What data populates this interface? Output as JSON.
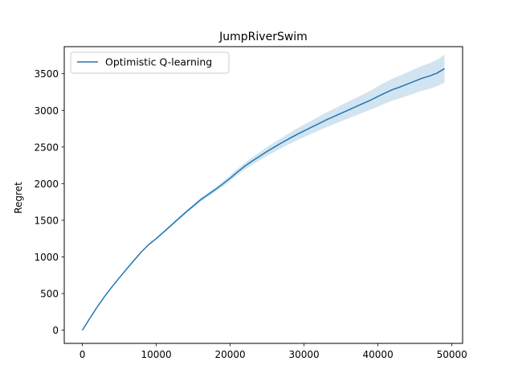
{
  "chart_data": {
    "type": "line",
    "title": "JumpRiverSwim",
    "xlabel": "",
    "ylabel": "Regret",
    "xlim": [
      -2450,
      51450
    ],
    "ylim": [
      -180,
      3870
    ],
    "xticks": [
      0,
      10000,
      20000,
      30000,
      40000,
      50000
    ],
    "yticks": [
      0,
      500,
      1000,
      1500,
      2000,
      2500,
      3000,
      3500
    ],
    "grid": false,
    "legend": "upper-left",
    "series": [
      {
        "name": "Optimistic Q-learning",
        "color": "#1f77b4",
        "band_color": "#1f77b4",
        "x": [
          0,
          1000,
          2000,
          3000,
          4000,
          5000,
          6000,
          7000,
          8000,
          9000,
          10000,
          11000,
          12000,
          13000,
          14000,
          15000,
          16000,
          17000,
          18000,
          19000,
          20000,
          21000,
          22000,
          23000,
          24000,
          25000,
          26000,
          27000,
          28000,
          29000,
          30000,
          31000,
          32000,
          33000,
          34000,
          35000,
          36000,
          37000,
          38000,
          39000,
          40000,
          41000,
          42000,
          43000,
          44000,
          45000,
          46000,
          47000,
          48000,
          49000
        ],
        "y": [
          0,
          160,
          315,
          460,
          590,
          715,
          835,
          955,
          1070,
          1170,
          1250,
          1340,
          1430,
          1520,
          1610,
          1695,
          1780,
          1850,
          1920,
          1995,
          2075,
          2160,
          2240,
          2310,
          2375,
          2440,
          2500,
          2560,
          2615,
          2670,
          2720,
          2770,
          2820,
          2870,
          2915,
          2960,
          3005,
          3050,
          3095,
          3140,
          3190,
          3240,
          3285,
          3320,
          3360,
          3400,
          3440,
          3470,
          3510,
          3570
        ],
        "lower": [
          0,
          158,
          312,
          456,
          585,
          709,
          828,
          947,
          1061,
          1160,
          1238,
          1326,
          1414,
          1502,
          1590,
          1672,
          1755,
          1822,
          1890,
          1961,
          2037,
          2118,
          2194,
          2260,
          2320,
          2380,
          2435,
          2490,
          2540,
          2590,
          2635,
          2680,
          2725,
          2770,
          2810,
          2850,
          2890,
          2930,
          2970,
          3010,
          3050,
          3095,
          3135,
          3165,
          3200,
          3235,
          3270,
          3295,
          3330,
          3380
        ],
        "upper": [
          0,
          162,
          318,
          464,
          595,
          721,
          842,
          963,
          1079,
          1180,
          1262,
          1354,
          1446,
          1538,
          1630,
          1718,
          1805,
          1878,
          1950,
          2029,
          2113,
          2202,
          2286,
          2360,
          2430,
          2500,
          2565,
          2630,
          2690,
          2750,
          2805,
          2860,
          2915,
          2970,
          3020,
          3070,
          3120,
          3170,
          3220,
          3270,
          3330,
          3385,
          3435,
          3475,
          3520,
          3565,
          3610,
          3645,
          3690,
          3760
        ]
      }
    ]
  }
}
